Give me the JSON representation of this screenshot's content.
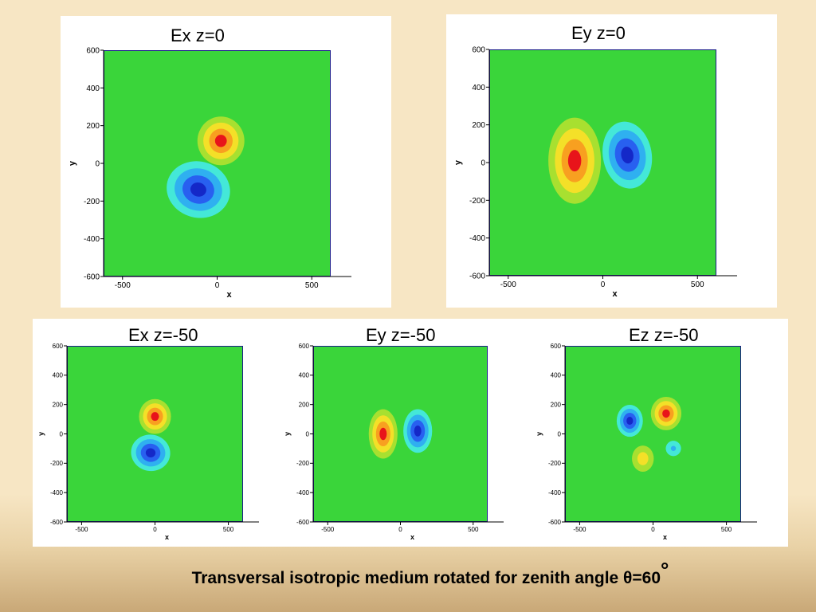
{
  "caption": {
    "text": "Transversal isotropic medium rotated for zenith angle θ=60",
    "degree": "°"
  },
  "colors": {
    "background": "#f7e6c4",
    "field_zero": "#3ad53a",
    "positive_peak": "#e8141a",
    "negative_peak": "#1428c8"
  },
  "chart_data": [
    {
      "type": "heatmap",
      "title": "Ex z=0",
      "xlabel": "x",
      "ylabel": "y",
      "xlim": [
        -600,
        600
      ],
      "ylim": [
        -600,
        600
      ],
      "xticks": [
        -500,
        0,
        500
      ],
      "yticks": [
        600,
        400,
        200,
        0,
        -200,
        -400,
        -600
      ],
      "colormap": "jet",
      "background_level": 0.05,
      "features": [
        {
          "sign": "positive",
          "x": 20,
          "y": 120,
          "peak": 1.0
        },
        {
          "sign": "negative",
          "x": -100,
          "y": -140,
          "peak": -1.0
        }
      ]
    },
    {
      "type": "heatmap",
      "title": "Ey z=0",
      "xlabel": "x",
      "ylabel": "y",
      "xlim": [
        -600,
        600
      ],
      "ylim": [
        -600,
        600
      ],
      "xticks": [
        -500,
        0,
        500
      ],
      "yticks": [
        600,
        400,
        200,
        0,
        -200,
        -400,
        -600
      ],
      "colormap": "jet",
      "background_level": 0.0,
      "features": [
        {
          "sign": "positive",
          "x": -150,
          "y": 10,
          "peak": 1.0
        },
        {
          "sign": "negative",
          "x": 130,
          "y": 40,
          "peak": -0.9
        }
      ]
    },
    {
      "type": "heatmap",
      "title": "Ex z=-50",
      "xlabel": "x",
      "ylabel": "y",
      "xlim": [
        -600,
        600
      ],
      "ylim": [
        -600,
        600
      ],
      "xticks": [
        -500,
        0,
        500
      ],
      "yticks": [
        600,
        400,
        200,
        0,
        -200,
        -400,
        -600
      ],
      "colormap": "jet",
      "background_level": 0.0,
      "features": [
        {
          "sign": "positive",
          "x": 0,
          "y": 120,
          "peak": 1.0
        },
        {
          "sign": "negative",
          "x": -30,
          "y": -130,
          "peak": -0.9
        }
      ]
    },
    {
      "type": "heatmap",
      "title": "Ey z=-50",
      "xlabel": "x",
      "ylabel": "y",
      "xlim": [
        -600,
        600
      ],
      "ylim": [
        -600,
        600
      ],
      "xticks": [
        -500,
        0,
        500
      ],
      "yticks": [
        600,
        400,
        200,
        0,
        -200,
        -400,
        -600
      ],
      "colormap": "jet",
      "background_level": 0.0,
      "features": [
        {
          "sign": "positive",
          "x": -120,
          "y": 0,
          "peak": 1.0
        },
        {
          "sign": "negative",
          "x": 120,
          "y": 20,
          "peak": -0.9
        }
      ]
    },
    {
      "type": "heatmap",
      "title": "Ez z=-50",
      "xlabel": "x",
      "ylabel": "y",
      "xlim": [
        -600,
        600
      ],
      "ylim": [
        -600,
        600
      ],
      "xticks": [
        -500,
        0,
        500
      ],
      "yticks": [
        600,
        400,
        200,
        0,
        -200,
        -400,
        -600
      ],
      "colormap": "jet",
      "background_level": 0.0,
      "features": [
        {
          "sign": "positive",
          "x": 90,
          "y": 140,
          "peak": 1.0
        },
        {
          "sign": "negative",
          "x": -160,
          "y": 90,
          "peak": -0.9
        },
        {
          "sign": "positive",
          "x": -70,
          "y": -170,
          "peak": 0.6
        },
        {
          "sign": "negative",
          "x": 140,
          "y": -100,
          "peak": -0.4
        }
      ]
    }
  ]
}
